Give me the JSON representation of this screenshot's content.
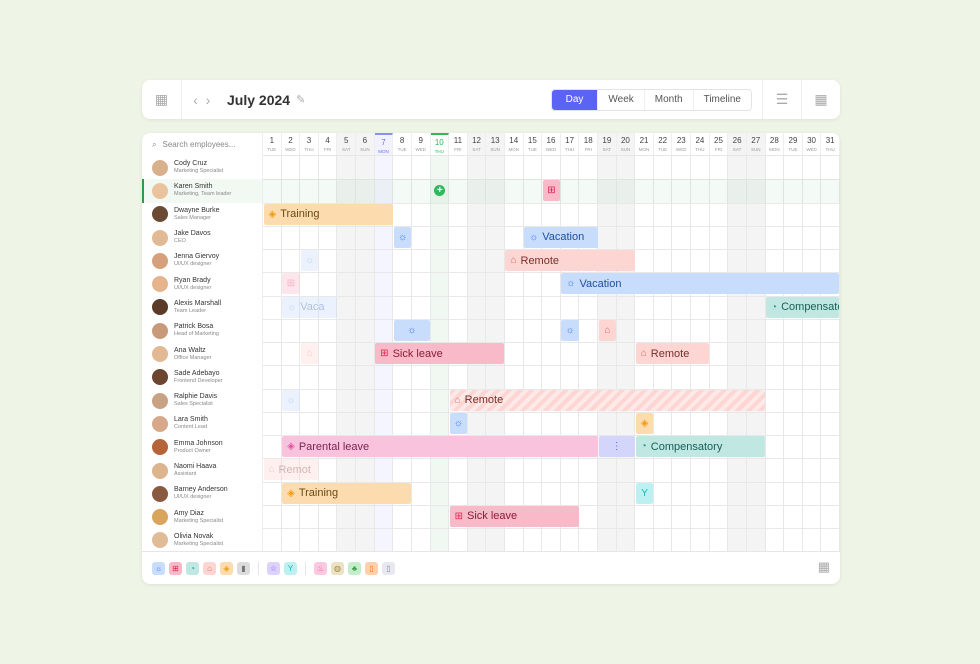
{
  "toolbar": {
    "title": "July 2024",
    "views": [
      "Day",
      "Week",
      "Month",
      "Timeline"
    ],
    "active_view": "Day"
  },
  "search": {
    "placeholder": "Search employees..."
  },
  "days": [
    {
      "n": "1",
      "w": "TUE"
    },
    {
      "n": "2",
      "w": "WED"
    },
    {
      "n": "3",
      "w": "THU"
    },
    {
      "n": "4",
      "w": "FRI"
    },
    {
      "n": "5",
      "w": "SAT"
    },
    {
      "n": "6",
      "w": "SUN"
    },
    {
      "n": "7",
      "w": "MON"
    },
    {
      "n": "8",
      "w": "TUE"
    },
    {
      "n": "9",
      "w": "WED"
    },
    {
      "n": "10",
      "w": "THU"
    },
    {
      "n": "11",
      "w": "FRI"
    },
    {
      "n": "12",
      "w": "SAT"
    },
    {
      "n": "13",
      "w": "SUN"
    },
    {
      "n": "14",
      "w": "MON"
    },
    {
      "n": "15",
      "w": "TUE"
    },
    {
      "n": "16",
      "w": "WED"
    },
    {
      "n": "17",
      "w": "THU"
    },
    {
      "n": "18",
      "w": "FRI"
    },
    {
      "n": "19",
      "w": "SAT"
    },
    {
      "n": "20",
      "w": "SUN"
    },
    {
      "n": "21",
      "w": "MON"
    },
    {
      "n": "22",
      "w": "TUE"
    },
    {
      "n": "23",
      "w": "WED"
    },
    {
      "n": "24",
      "w": "THU"
    },
    {
      "n": "25",
      "w": "FRI"
    },
    {
      "n": "26",
      "w": "SAT"
    },
    {
      "n": "27",
      "w": "SUN"
    },
    {
      "n": "28",
      "w": "MON"
    },
    {
      "n": "29",
      "w": "TUE"
    },
    {
      "n": "30",
      "w": "WED"
    },
    {
      "n": "31",
      "w": "THU"
    }
  ],
  "today": 10,
  "highlighted_day": 7,
  "employees": [
    {
      "name": "Cody Cruz",
      "role": "Marketing Specialist"
    },
    {
      "name": "Karen Smith",
      "role": "Marketing, Team leader",
      "selected": true
    },
    {
      "name": "Dwayne Burke",
      "role": "Sales Manager"
    },
    {
      "name": "Jake Davos",
      "role": "CEO"
    },
    {
      "name": "Jenna Giervoy",
      "role": "UI/UX designer"
    },
    {
      "name": "Ryan Brady",
      "role": "UI/UX designer"
    },
    {
      "name": "Alexis Marshall",
      "role": "Team Leader"
    },
    {
      "name": "Patrick Bosa",
      "role": "Head of Marketing"
    },
    {
      "name": "Ana Waltz",
      "role": "Office Manager"
    },
    {
      "name": "Sade Adebayo",
      "role": "Frontend Developer"
    },
    {
      "name": "Ralphie Davis",
      "role": "Sales Specialist"
    },
    {
      "name": "Lara Smith",
      "role": "Content Lead"
    },
    {
      "name": "Emma Johnson",
      "role": "Product Owner"
    },
    {
      "name": "Naomi Haava",
      "role": "Assistant"
    },
    {
      "name": "Barney Anderson",
      "role": "UI/UX designer"
    },
    {
      "name": "Amy Diaz",
      "role": "Marketing Specialist"
    },
    {
      "name": "Olivia Novak",
      "role": "Marketing Specialist"
    }
  ],
  "types": {
    "vacation": {
      "bg": "#c8dcfb",
      "fg": "#1f4f9e",
      "icon": "☼",
      "ic": "#3b7cf0"
    },
    "sick": {
      "bg": "#f8b9c9",
      "fg": "#8a1d36",
      "icon": "⊞",
      "ic": "#e0264f"
    },
    "remote": {
      "bg": "#fdd6d3",
      "fg": "#7a2f2a",
      "icon": "⌂",
      "ic": "#e06a60"
    },
    "training": {
      "bg": "#fcdcae",
      "fg": "#6b4a12",
      "icon": "◈",
      "ic": "#f29a12"
    },
    "compensatory": {
      "bg": "#c0e7e1",
      "fg": "#165f57",
      "icon": "◔",
      "ic": "#1b9e8c"
    },
    "parental": {
      "bg": "#f9c3de",
      "fg": "#7a2352",
      "icon": "◈",
      "ic": "#e0559e"
    },
    "other": {
      "bg": "#d4d5fb",
      "fg": "#5b63f5",
      "icon": "⋮",
      "ic": "#5b63f5"
    },
    "party": {
      "bg": "#bdf1f1",
      "fg": "#137a7a",
      "icon": "Y",
      "ic": "#1cb5b5"
    },
    "add": {
      "bg": "transparent",
      "fg": "#fff",
      "icon": "+",
      "ic": "#fff"
    }
  },
  "events": [
    {
      "row": 1,
      "start": 10,
      "end": 10,
      "type": "add"
    },
    {
      "row": 1,
      "start": 16,
      "end": 16,
      "type": "sick"
    },
    {
      "row": 2,
      "start": 1,
      "end": 7,
      "type": "training",
      "label": "Training"
    },
    {
      "row": 3,
      "start": 8,
      "end": 8,
      "type": "vacation"
    },
    {
      "row": 3,
      "start": 15,
      "end": 18,
      "type": "vacation",
      "label": "Vacation"
    },
    {
      "row": 4,
      "start": 3,
      "end": 3,
      "type": "vacation",
      "faded": true
    },
    {
      "row": 4,
      "start": 14,
      "end": 20,
      "type": "remote",
      "label": "Remote"
    },
    {
      "row": 5,
      "start": 2,
      "end": 2,
      "type": "sick",
      "faded": true
    },
    {
      "row": 5,
      "start": 17,
      "end": 31,
      "type": "vacation",
      "label": "Vacation"
    },
    {
      "row": 6,
      "start": 2,
      "end": 4,
      "type": "vacation",
      "label": "Vaca",
      "faded": true
    },
    {
      "row": 6,
      "start": 28,
      "end": 31,
      "type": "compensatory",
      "label": "Compensatory"
    },
    {
      "row": 7,
      "start": 8,
      "end": 9,
      "type": "vacation"
    },
    {
      "row": 7,
      "start": 17,
      "end": 17,
      "type": "vacation"
    },
    {
      "row": 7,
      "start": 19,
      "end": 19,
      "type": "remote"
    },
    {
      "row": 8,
      "start": 3,
      "end": 3,
      "type": "remote",
      "faded": true
    },
    {
      "row": 8,
      "start": 7,
      "end": 13,
      "type": "sick",
      "label": "Sick leave"
    },
    {
      "row": 8,
      "start": 21,
      "end": 24,
      "type": "remote",
      "label": "Remote"
    },
    {
      "row": 10,
      "start": 2,
      "end": 2,
      "type": "vacation",
      "faded": true
    },
    {
      "row": 10,
      "start": 11,
      "end": 27,
      "type": "remote",
      "label": "Remote",
      "striped": true
    },
    {
      "row": 11,
      "start": 11,
      "end": 11,
      "type": "vacation"
    },
    {
      "row": 11,
      "start": 21,
      "end": 21,
      "type": "training"
    },
    {
      "row": 12,
      "start": 2,
      "end": 18,
      "type": "parental",
      "label": "Parental leave"
    },
    {
      "row": 12,
      "start": 19,
      "end": 20,
      "type": "other"
    },
    {
      "row": 12,
      "start": 21,
      "end": 27,
      "type": "compensatory",
      "label": "Compensatory"
    },
    {
      "row": 13,
      "start": 1,
      "end": 3,
      "type": "remote",
      "label": "Remot",
      "faded": true
    },
    {
      "row": 14,
      "start": 2,
      "end": 8,
      "type": "training",
      "label": "Training"
    },
    {
      "row": 14,
      "start": 21,
      "end": 21,
      "type": "party"
    },
    {
      "row": 15,
      "start": 11,
      "end": 17,
      "type": "sick",
      "label": "Sick leave"
    }
  ],
  "legend": [
    {
      "bg": "#c8dcfb",
      "c": "#3b7cf0",
      "i": "☼",
      "name": "vacation-icon"
    },
    {
      "bg": "#f8b9c9",
      "c": "#e0264f",
      "i": "⊞",
      "name": "sick-icon"
    },
    {
      "bg": "#c0e7e1",
      "c": "#1b9e8c",
      "i": "◔",
      "name": "compensatory-icon"
    },
    {
      "bg": "#fdd6d3",
      "c": "#e06a60",
      "i": "⌂",
      "name": "remote-icon"
    },
    {
      "bg": "#fcdcae",
      "c": "#f29a12",
      "i": "◈",
      "name": "training-icon"
    },
    {
      "bg": "#dcdcdc",
      "c": "#777",
      "i": "▮",
      "name": "exit-icon"
    },
    {
      "sep": true
    },
    {
      "bg": "#dcd2fb",
      "c": "#7a4ff0",
      "i": "☆",
      "name": "star-icon"
    },
    {
      "bg": "#bdf1f1",
      "c": "#1cb5b5",
      "i": "Y",
      "name": "cocktail-icon"
    },
    {
      "sep": true
    },
    {
      "bg": "#fcc8e0",
      "c": "#e0559e",
      "i": "♨",
      "name": "cake-icon"
    },
    {
      "bg": "#ece1c2",
      "c": "#a08a40",
      "i": "◍",
      "name": "bear-icon"
    },
    {
      "bg": "#c5edcc",
      "c": "#3aa04e",
      "i": "♣",
      "name": "plant-icon"
    },
    {
      "bg": "#fcd0ad",
      "c": "#ee7a22",
      "i": "▯",
      "name": "document-icon"
    },
    {
      "bg": "#e7e8f0",
      "c": "#8a8da8",
      "i": "▯",
      "name": "building-icon"
    }
  ]
}
